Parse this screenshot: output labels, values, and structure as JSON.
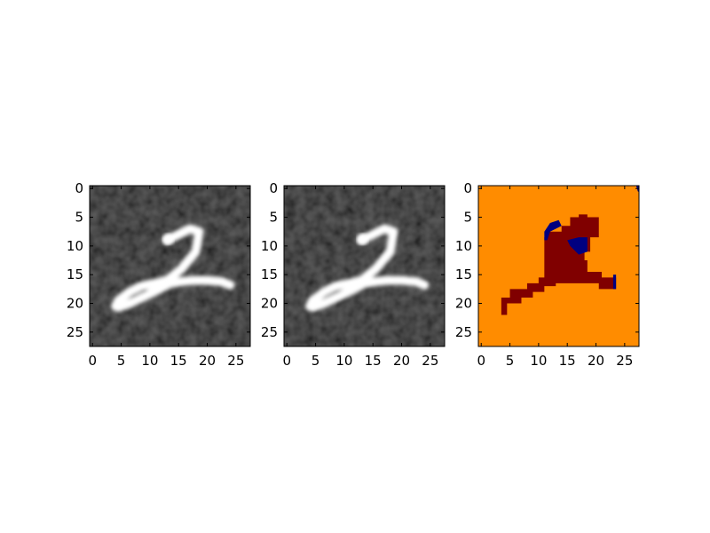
{
  "figure": {
    "description": "Three side-by-side image panels of a handwritten digit"
  },
  "chart_data": [
    {
      "type": "heatmap",
      "name": "original-image",
      "colormap": "gray",
      "xlim": [
        0,
        27
      ],
      "ylim": [
        27,
        0
      ],
      "xticks": [
        "0",
        "5",
        "10",
        "15",
        "20",
        "25"
      ],
      "yticks": [
        "0",
        "5",
        "10",
        "15",
        "20",
        "25"
      ],
      "stroke": [
        {
          "x": [
            13.0,
            15.0,
            17.0,
            18.6,
            18.0,
            15.5,
            13.0,
            11.0,
            8.5,
            6.5,
            4.5,
            4.0,
            4.5,
            6.5,
            9.0,
            11.5,
            13.5,
            15.5,
            17.5,
            20.0,
            22.5,
            24.0
          ],
          "y": [
            9.0,
            8.0,
            7.0,
            7.5,
            11.0,
            14.0,
            16.0,
            16.5,
            17.0,
            18.0,
            19.5,
            20.5,
            20.7,
            20.0,
            18.8,
            17.6,
            16.5,
            16.2,
            16.0,
            16.0,
            16.2,
            16.8
          ]
        }
      ]
    },
    {
      "type": "heatmap",
      "name": "reconstructed-image",
      "colormap": "gray",
      "xlim": [
        0,
        27
      ],
      "ylim": [
        27,
        0
      ],
      "xticks": [
        "0",
        "5",
        "10",
        "15",
        "20",
        "25"
      ],
      "yticks": [
        "0",
        "5",
        "10",
        "15",
        "20",
        "25"
      ],
      "stroke": [
        {
          "x": [
            13.0,
            15.0,
            17.0,
            18.6,
            18.0,
            15.5,
            13.0,
            11.0,
            8.5,
            6.5,
            4.5,
            4.0,
            4.5,
            6.5,
            9.0,
            11.5,
            13.5,
            15.5,
            17.5,
            20.0,
            22.5,
            24.0
          ],
          "y": [
            9.0,
            8.0,
            7.0,
            7.5,
            11.0,
            14.0,
            16.0,
            16.5,
            17.0,
            18.0,
            19.5,
            20.5,
            20.7,
            20.0,
            18.8,
            17.6,
            16.5,
            16.2,
            16.0,
            16.0,
            16.2,
            16.8
          ]
        }
      ]
    },
    {
      "type": "heatmap",
      "name": "segmentation-map",
      "colormap": "jet",
      "xlim": [
        0,
        27
      ],
      "ylim": [
        27,
        0
      ],
      "xticks": [
        "0",
        "5",
        "10",
        "15",
        "20",
        "25"
      ],
      "yticks": [
        "0",
        "5",
        "10",
        "15",
        "20",
        "25"
      ],
      "background_color": "#ff8c00",
      "regions": [
        {
          "label": "digit",
          "color": "#800000",
          "outline_x": [
            3.5,
            3.5,
            5,
            5,
            8,
            8,
            10,
            10,
            12,
            12,
            14,
            14,
            16,
            16,
            18.5,
            18.5,
            21,
            21,
            23.5,
            23.5,
            20.5,
            20.5,
            18.5,
            18.5,
            17.5,
            17.5,
            15.5,
            15.5,
            13.5,
            13.5,
            11.5,
            11.5,
            11,
            11,
            11.5,
            11.5,
            14,
            14,
            15.5,
            15.5,
            17,
            17,
            18.5,
            18.5,
            20.5,
            20.5,
            19,
            19,
            18,
            18,
            17,
            17,
            16,
            16,
            15,
            15,
            13,
            13,
            11,
            11,
            9,
            9,
            7,
            7,
            4.5,
            4.5
          ],
          "outline_y": [
            22,
            19,
            19,
            17.5,
            17.5,
            16.5,
            16.5,
            15.5,
            15.5,
            14.5,
            14.5,
            13.5,
            13.5,
            12.5,
            12.5,
            14.5,
            14.5,
            15.5,
            15.5,
            17.5,
            17.5,
            16.5,
            16.5,
            16.5,
            16.5,
            16.5,
            16.5,
            16.5,
            16.5,
            16.5,
            16.5,
            16.5,
            16.5,
            8.5,
            8.5,
            7.5,
            7.5,
            6.5,
            6.5,
            5,
            5,
            4.5,
            4.5,
            5,
            5,
            8.5,
            8.5,
            11,
            11,
            13,
            13,
            14,
            14,
            15,
            15,
            16,
            16,
            17,
            17,
            18,
            18,
            19,
            19,
            20,
            20,
            22
          ]
        },
        {
          "label": "class-blue-1",
          "color": "#000080",
          "outline_x": [
            11,
            12,
            13.5,
            14,
            13,
            12,
            11.5,
            11
          ],
          "outline_y": [
            7.5,
            6,
            5.5,
            6.5,
            7,
            7.5,
            9,
            9
          ]
        },
        {
          "label": "class-blue-2",
          "color": "#000080",
          "outline_x": [
            15,
            17,
            18.5,
            18.5,
            17,
            15.5
          ],
          "outline_y": [
            9,
            8.5,
            8.5,
            11,
            11.5,
            10
          ]
        },
        {
          "label": "class-blue-3",
          "color": "#000080",
          "outline_x": [
            23,
            23.5,
            23.5,
            23
          ],
          "outline_y": [
            15,
            15,
            17.5,
            17.5
          ]
        },
        {
          "label": "class-blue-corner",
          "color": "#000080",
          "outline_x": [
            27,
            28,
            28,
            27.3
          ],
          "outline_y": [
            -0.5,
            -0.5,
            0.8,
            0.5
          ]
        }
      ]
    }
  ]
}
